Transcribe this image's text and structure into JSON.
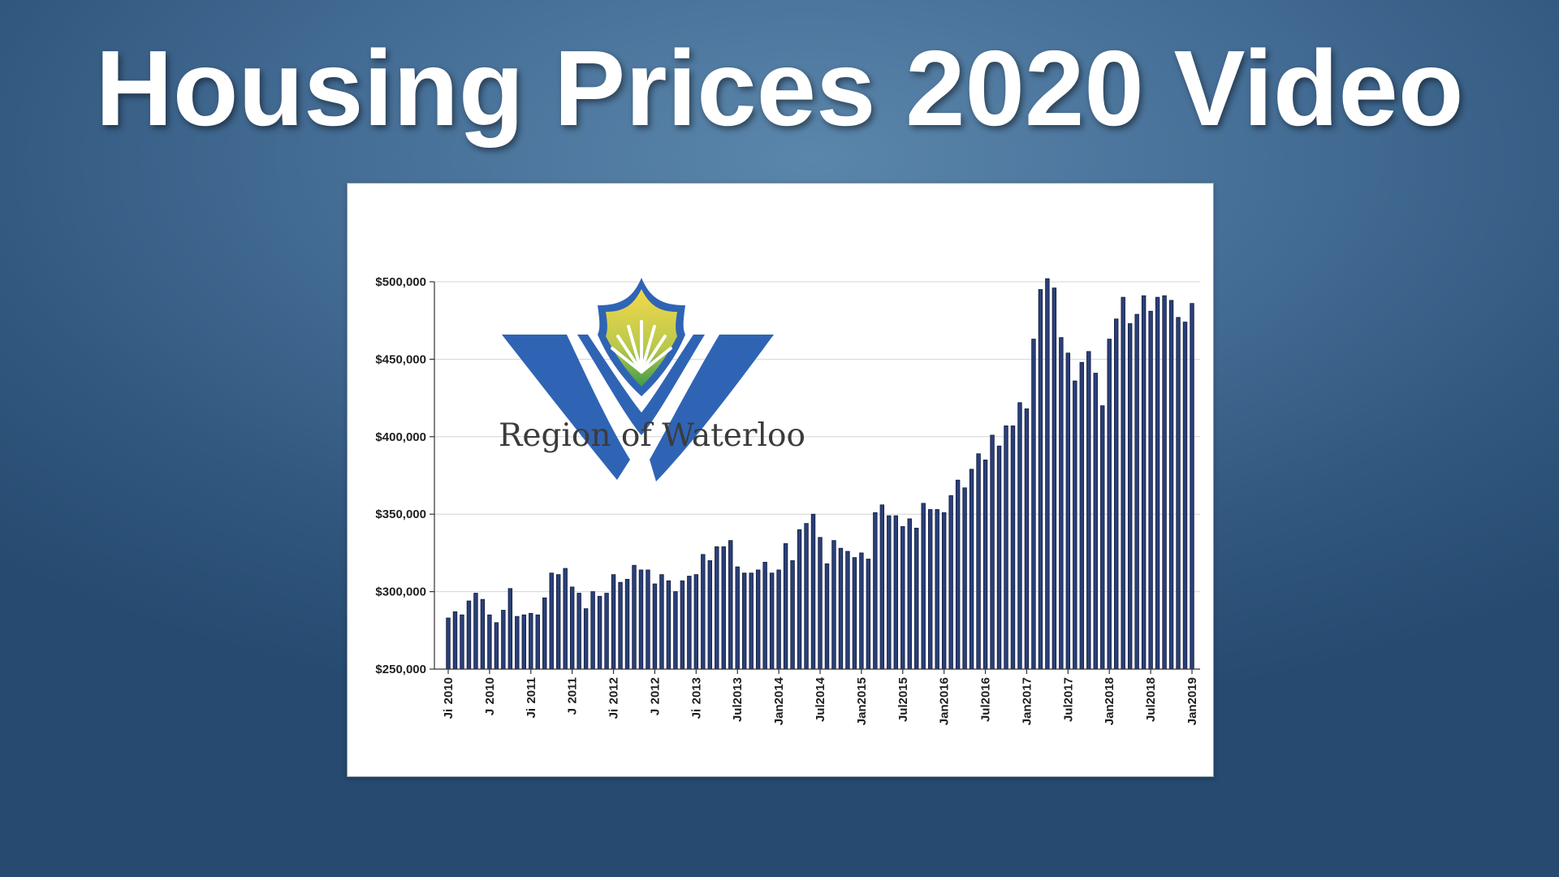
{
  "slide": {
    "title": "Housing Prices 2020 Video",
    "colors": {
      "background_top": "#5b86ab",
      "background_bottom": "#264a70",
      "title_text": "#ffffff"
    }
  },
  "logo": {
    "text": "Region of Waterloo",
    "colors": {
      "primary_blue": "#2f64b5",
      "yellow": "#f0d64a",
      "green": "#3f9a49"
    }
  },
  "chart_data": {
    "type": "bar",
    "title": "",
    "xlabel": "",
    "ylabel": "",
    "ylim": [
      250000,
      500000
    ],
    "yticks": [
      250000,
      300000,
      350000,
      400000,
      450000,
      500000
    ],
    "ytick_labels": [
      "$250,000",
      "$300,000",
      "$350,000",
      "$400,000",
      "$450,000",
      "$500,000"
    ],
    "grid": true,
    "bar_color": "#2b3f78",
    "start": "Jan2010",
    "xtick_labels": [
      {
        "index": 0,
        "label": "Ji  2010"
      },
      {
        "index": 6,
        "label": "J  2010"
      },
      {
        "index": 12,
        "label": "Ji  2011"
      },
      {
        "index": 18,
        "label": "J  2011"
      },
      {
        "index": 24,
        "label": "Ji  2012"
      },
      {
        "index": 30,
        "label": "J  2012"
      },
      {
        "index": 36,
        "label": "Ji  2013"
      },
      {
        "index": 42,
        "label": "Jul2013"
      },
      {
        "index": 48,
        "label": "Jan2014"
      },
      {
        "index": 54,
        "label": "Jul2014"
      },
      {
        "index": 60,
        "label": "Jan2015"
      },
      {
        "index": 66,
        "label": "Jul2015"
      },
      {
        "index": 72,
        "label": "Jan2016"
      },
      {
        "index": 78,
        "label": "Jul2016"
      },
      {
        "index": 84,
        "label": "Jan2017"
      },
      {
        "index": 90,
        "label": "Jul2017"
      },
      {
        "index": 96,
        "label": "Jan2018"
      },
      {
        "index": 102,
        "label": "Jul2018"
      },
      {
        "index": 108,
        "label": "Jan2019"
      }
    ],
    "values": [
      283000,
      287000,
      285000,
      294000,
      299000,
      295000,
      285000,
      280000,
      288000,
      302000,
      284000,
      285000,
      286000,
      285000,
      296000,
      312000,
      311000,
      315000,
      303000,
      299000,
      289000,
      300000,
      297000,
      299000,
      311000,
      306000,
      308000,
      317000,
      314000,
      314000,
      305000,
      311000,
      307000,
      300000,
      307000,
      310000,
      311000,
      324000,
      320000,
      329000,
      329000,
      333000,
      316000,
      312000,
      312000,
      314000,
      319000,
      312000,
      314000,
      331000,
      320000,
      340000,
      344000,
      350000,
      335000,
      318000,
      333000,
      328000,
      326000,
      322000,
      325000,
      321000,
      351000,
      356000,
      349000,
      349000,
      342000,
      347000,
      341000,
      357000,
      353000,
      353000,
      351000,
      362000,
      372000,
      367000,
      379000,
      389000,
      385000,
      401000,
      394000,
      407000,
      407000,
      422000,
      418000,
      463000,
      495000,
      502000,
      496000,
      464000,
      454000,
      436000,
      448000,
      455000,
      441000,
      420000,
      463000,
      476000,
      490000,
      473000,
      479000,
      491000,
      481000,
      490000,
      491000,
      488000,
      477000,
      474000,
      486000
    ]
  }
}
